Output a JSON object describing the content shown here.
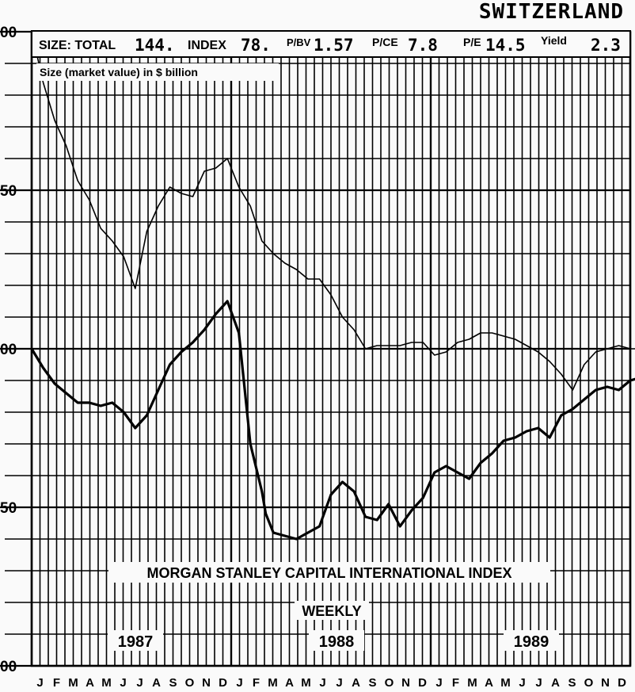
{
  "country": "SWITZERLAND",
  "header": {
    "size_label": "SIZE: TOTAL",
    "size_value": "144.",
    "index_label": "INDEX",
    "index_value": "78.",
    "pbv_label": "P/BV",
    "pbv_value": "1.57",
    "pce_label": "P/CE",
    "pce_value": "7.8",
    "pe_label": "P/E",
    "pe_value": "14.5",
    "yield_label": "Yield",
    "yield_value": "2.3"
  },
  "chart_data": {
    "type": "line",
    "title": "MORGAN STANLEY CAPITAL INTERNATIONAL INDEX",
    "subtitle": "WEEKLY",
    "annotation": "Size (market value) in $ billion",
    "y_tick_labels": [
      "00",
      "50",
      "00",
      "50",
      "00"
    ],
    "y_ticks_relative": [
      200,
      150,
      100,
      50,
      0
    ],
    "ylim": [
      0,
      200
    ],
    "x_month_labels": [
      "J",
      "F",
      "M",
      "A",
      "M",
      "J",
      "J",
      "A",
      "S",
      "O",
      "N",
      "D",
      "J",
      "F",
      "M",
      "A",
      "M",
      "J",
      "J",
      "A",
      "S",
      "O",
      "N",
      "D",
      "J",
      "F",
      "M",
      "A",
      "M",
      "J",
      "J",
      "A",
      "S",
      "O",
      "N",
      "D"
    ],
    "years": [
      "1987",
      "1988",
      "1989"
    ],
    "grid": true,
    "series": [
      {
        "name": "",
        "style": "thin",
        "x_week": [
          0,
          3,
          6,
          9,
          12,
          15,
          18,
          21,
          24,
          27,
          30,
          33,
          36,
          39,
          42,
          45,
          48,
          51,
          54,
          57,
          60,
          63,
          66,
          69,
          72,
          75,
          78,
          81,
          84,
          87,
          90,
          93,
          96,
          99,
          102,
          105,
          108,
          111,
          114,
          117,
          120,
          123,
          126,
          129,
          132,
          135,
          138,
          141,
          144,
          147,
          150,
          153,
          156,
          159,
          162
        ],
        "values": [
          200,
          184,
          172,
          164,
          153,
          147,
          138,
          134,
          129,
          119,
          137,
          145,
          151,
          149,
          148,
          156,
          157,
          160,
          151,
          145,
          134,
          130,
          127,
          125,
          122,
          122,
          117,
          110,
          106,
          100,
          101,
          101,
          101,
          102,
          102,
          98,
          99,
          102,
          103,
          105,
          105,
          104,
          103,
          101,
          99,
          96,
          92,
          87,
          95,
          99,
          100,
          101,
          100,
          100,
          100
        ]
      },
      {
        "name": "",
        "style": "thick",
        "x_week": [
          0,
          3,
          6,
          9,
          12,
          15,
          18,
          21,
          24,
          27,
          30,
          33,
          36,
          39,
          42,
          45,
          48,
          51,
          54,
          57,
          60,
          61,
          63,
          66,
          69,
          72,
          75,
          78,
          81,
          84,
          87,
          90,
          93,
          96,
          99,
          102,
          105,
          108,
          111,
          114,
          117,
          120,
          123,
          126,
          129,
          132,
          135,
          138,
          141,
          144,
          147,
          150,
          153,
          156,
          159,
          162
        ],
        "values": [
          100,
          94,
          89,
          86,
          83,
          83,
          82,
          83,
          80,
          75,
          79,
          87,
          95,
          99,
          102,
          106,
          111,
          115,
          105,
          70,
          55,
          48,
          42,
          41,
          40,
          42,
          44,
          54,
          58,
          55,
          47,
          46,
          51,
          44,
          49,
          53,
          61,
          63,
          61,
          59,
          64,
          67,
          71,
          72,
          74,
          75,
          72,
          79,
          81,
          84,
          87,
          88,
          87,
          90,
          91,
          92
        ]
      }
    ]
  }
}
